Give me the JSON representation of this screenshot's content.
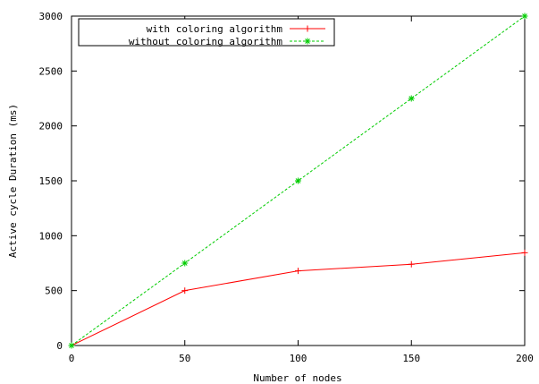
{
  "chart_data": {
    "type": "line",
    "title": "",
    "xlabel": "Number of nodes",
    "ylabel": "Active cycle Duration (ms)",
    "xlim": [
      0,
      200
    ],
    "ylim": [
      0,
      3000
    ],
    "xticks": [
      "0",
      "50",
      "100",
      "150",
      "200"
    ],
    "yticks": [
      "0",
      "500",
      "1000",
      "1500",
      "2000",
      "2500",
      "3000"
    ],
    "grid": false,
    "legend_position": "top-left",
    "x": [
      0,
      50,
      100,
      150,
      200
    ],
    "series": [
      {
        "name": "with coloring algorithm",
        "values": [
          0,
          500,
          680,
          740,
          845
        ],
        "color": "#ff0000",
        "dashed": false,
        "marker": "plus"
      },
      {
        "name": "without coloring algorithm",
        "values": [
          0,
          750,
          1500,
          2250,
          3000
        ],
        "color": "#00cc00",
        "dashed": true,
        "marker": "star"
      }
    ]
  }
}
